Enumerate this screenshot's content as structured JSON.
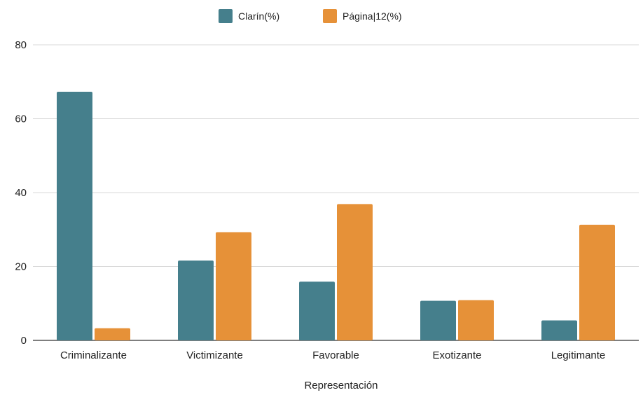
{
  "chart_data": {
    "type": "bar",
    "categories": [
      "Criminalizante",
      "Victimizante",
      "Favorable",
      "Exotizante",
      "Legitimante"
    ],
    "series": [
      {
        "name": "Clarín(%)",
        "values": [
          67.3,
          21.6,
          15.9,
          10.7,
          5.4
        ],
        "color": "#457f8c"
      },
      {
        "name": "Página|12(%)",
        "values": [
          3.3,
          29.3,
          36.9,
          10.9,
          31.3
        ],
        "color": "#e69138"
      }
    ],
    "title": "",
    "xlabel": "Representación",
    "ylabel": "",
    "ylim": [
      0,
      80
    ],
    "yticks": [
      0,
      20,
      40,
      60,
      80
    ],
    "grid": true,
    "legend_position": "top-center"
  }
}
